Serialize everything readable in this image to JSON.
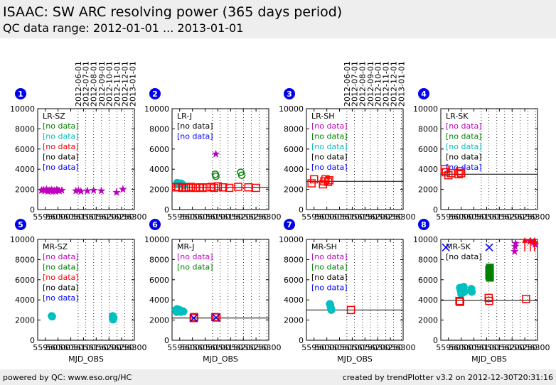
{
  "header": {
    "title": "ISAAC: SW ARC resolving power (365 days period)",
    "subtitle": "QC data range: 2012-01-01 ... 2013-01-01"
  },
  "footer": {
    "left": "powered by QC: www.eso.org/HC",
    "right": "created by trendPlotter v3.2 on 2012-12-30T20:31:16"
  },
  "axis": {
    "xlabel": "MJD_OBS",
    "xlim": [
      55920,
      56300
    ],
    "ylim": [
      0,
      10000
    ],
    "xticks": [
      55950,
      56000,
      56050,
      56100,
      56150,
      56200,
      56250,
      56300
    ],
    "yticks": [
      0,
      2000,
      4000,
      6000,
      8000,
      10000
    ],
    "month_lines": [
      56079,
      56109,
      56140,
      56171,
      56201,
      56232,
      56262,
      56293
    ],
    "date_labels": [
      "2012-06-01",
      "2012-07-01",
      "2012-08-01",
      "2012-09-01",
      "2012-10-01",
      "2012-11-01",
      "2012-12-01",
      "2013-01-01"
    ]
  },
  "colors": {
    "magenta": "#bf00bf",
    "green": "#008000",
    "cyan": "#00bfbf",
    "red": "#ff0000",
    "black": "#000000",
    "blue": "#0000ff"
  },
  "chart_data": [
    {
      "type": "scatter",
      "number": "1",
      "label": "LR-SZ",
      "dates": true,
      "no_data": [
        {
          "text": "[no data]",
          "color": "green"
        },
        {
          "text": "[no data]",
          "color": "cyan"
        },
        {
          "text": "[no data]",
          "color": "red"
        },
        {
          "text": "[no data]",
          "color": "black"
        },
        {
          "text": "[no data]",
          "color": "blue"
        }
      ],
      "series": [
        {
          "color": "magenta",
          "marker": "star",
          "points": [
            [
              55935,
              1900
            ],
            [
              55942,
              1950
            ],
            [
              55948,
              1850
            ],
            [
              55955,
              2000
            ],
            [
              55960,
              1800
            ],
            [
              55965,
              1900
            ],
            [
              55970,
              1850
            ],
            [
              55975,
              1950
            ],
            [
              55980,
              1800
            ],
            [
              55985,
              1900
            ],
            [
              55990,
              1800
            ],
            [
              55995,
              1950
            ],
            [
              56000,
              1900
            ],
            [
              56005,
              1850
            ],
            [
              56015,
              1900
            ],
            [
              56070,
              1850
            ],
            [
              56080,
              1900
            ],
            [
              56090,
              1800
            ],
            [
              56115,
              1850
            ],
            [
              56140,
              1900
            ],
            [
              56170,
              1850
            ],
            [
              56230,
              1700
            ],
            [
              56255,
              2000
            ]
          ]
        }
      ]
    },
    {
      "type": "scatter",
      "number": "2",
      "label": "LR-J",
      "dates": false,
      "no_data": [
        {
          "text": "[no data]",
          "color": "black"
        },
        {
          "text": "[no data]",
          "color": "blue"
        }
      ],
      "series": [
        {
          "color": "cyan",
          "marker": "dot",
          "points": [
            [
              55937,
              2500
            ],
            [
              55940,
              2650
            ],
            [
              55945,
              2600
            ],
            [
              55950,
              2550
            ],
            [
              55955,
              2600
            ],
            [
              55960,
              2500
            ],
            [
              55965,
              2400
            ]
          ]
        },
        {
          "color": "red",
          "marker": "square",
          "points": [
            [
              55935,
              2200
            ],
            [
              55945,
              2250
            ],
            [
              55960,
              2150
            ],
            [
              55975,
              2200
            ],
            [
              55985,
              2150
            ],
            [
              55995,
              2250
            ],
            [
              56015,
              2150
            ],
            [
              56030,
              2200
            ],
            [
              56040,
              2150
            ],
            [
              56055,
              2200
            ],
            [
              56075,
              2250
            ],
            [
              56085,
              2150
            ],
            [
              56100,
              2300
            ],
            [
              56120,
              2200
            ],
            [
              56145,
              2150
            ],
            [
              56180,
              2250
            ],
            [
              56220,
              2200
            ],
            [
              56250,
              2150
            ]
          ]
        },
        {
          "color": "green",
          "marker": "circle",
          "points": [
            [
              56090,
              3500
            ],
            [
              56092,
              3300
            ],
            [
              56190,
              3700
            ],
            [
              56194,
              3400
            ]
          ]
        },
        {
          "color": "magenta",
          "marker": "star",
          "points": [
            [
              56092,
              5500
            ]
          ]
        }
      ],
      "hlines": [
        2200
      ]
    },
    {
      "type": "scatter",
      "number": "3",
      "label": "LR-SH",
      "dates": true,
      "no_data": [
        {
          "text": "[no data]",
          "color": "magenta"
        },
        {
          "text": "[no data]",
          "color": "green"
        },
        {
          "text": "[no data]",
          "color": "cyan"
        },
        {
          "text": "[no data]",
          "color": "black"
        },
        {
          "text": "[no data]",
          "color": "blue"
        }
      ],
      "series": [
        {
          "color": "red",
          "marker": "square",
          "points": [
            [
              55940,
              2600
            ],
            [
              55950,
              3000
            ],
            [
              55985,
              2500
            ],
            [
              55990,
              2800
            ],
            [
              55995,
              3000
            ],
            [
              56005,
              2750
            ],
            [
              56010,
              2900
            ]
          ]
        }
      ],
      "hlines": [
        2800
      ]
    },
    {
      "type": "scatter",
      "number": "4",
      "label": "LR-SK",
      "dates": false,
      "no_data": [
        {
          "text": "[no data]",
          "color": "magenta"
        },
        {
          "text": "[no data]",
          "color": "green"
        },
        {
          "text": "[no data]",
          "color": "cyan"
        },
        {
          "text": "[no data]",
          "color": "black"
        },
        {
          "text": "[no data]",
          "color": "blue"
        }
      ],
      "series": [
        {
          "color": "red",
          "marker": "square",
          "points": [
            [
              55935,
              4000
            ],
            [
              55940,
              3700
            ],
            [
              55950,
              3400
            ],
            [
              55960,
              3600
            ],
            [
              55990,
              3500
            ],
            [
              55995,
              3800
            ],
            [
              56000,
              3600
            ]
          ]
        }
      ],
      "hlines": [
        3500
      ]
    },
    {
      "type": "scatter",
      "number": "5",
      "label": "MR-SZ",
      "dates": false,
      "no_data": [
        {
          "text": "[no data]",
          "color": "magenta"
        },
        {
          "text": "[no data]",
          "color": "green"
        },
        {
          "text": "[no data]",
          "color": "red"
        },
        {
          "text": "[no data]",
          "color": "black"
        },
        {
          "text": "[no data]",
          "color": "blue"
        }
      ],
      "series": [
        {
          "color": "cyan",
          "marker": "dot",
          "points": [
            [
              55975,
              2400
            ],
            [
              55977,
              2350
            ],
            [
              56215,
              2400
            ],
            [
              56217,
              2300
            ],
            [
              56215,
              2150
            ],
            [
              56218,
              2200
            ],
            [
              56216,
              2050
            ]
          ]
        }
      ]
    },
    {
      "type": "scatter",
      "number": "6",
      "label": "MR-J",
      "dates": false,
      "no_data": [
        {
          "text": "[no data]",
          "color": "magenta"
        },
        {
          "text": "[no data]",
          "color": "green"
        }
      ],
      "series": [
        {
          "color": "cyan",
          "marker": "dot",
          "points": [
            [
              55935,
              3000
            ],
            [
              55938,
              2800
            ],
            [
              55940,
              3100
            ],
            [
              55945,
              2900
            ],
            [
              55950,
              3000
            ],
            [
              55955,
              2800
            ],
            [
              55960,
              2900
            ],
            [
              55965,
              2850
            ]
          ]
        },
        {
          "color": "red",
          "marker": "square",
          "points": [
            [
              56005,
              2200
            ],
            [
              56007,
              2300
            ],
            [
              56090,
              2300
            ],
            [
              56095,
              2250
            ]
          ]
        },
        {
          "color": "blue",
          "marker": "x",
          "points": [
            [
              56005,
              2200
            ],
            [
              56093,
              2250
            ]
          ]
        }
      ],
      "hlines": [
        2200
      ]
    },
    {
      "type": "scatter",
      "number": "7",
      "label": "MR-SH",
      "dates": false,
      "no_data": [
        {
          "text": "[no data]",
          "color": "magenta"
        },
        {
          "text": "[no data]",
          "color": "green"
        },
        {
          "text": "[no data]",
          "color": "black"
        },
        {
          "text": "[no data]",
          "color": "blue"
        }
      ],
      "series": [
        {
          "color": "cyan",
          "marker": "dot",
          "points": [
            [
              56012,
              3600
            ],
            [
              56014,
              3500
            ],
            [
              56015,
              3300
            ],
            [
              56017,
              3100
            ],
            [
              56018,
              3000
            ]
          ]
        },
        {
          "color": "red",
          "marker": "square",
          "points": [
            [
              56095,
              3000
            ]
          ]
        }
      ],
      "hlines": [
        3000
      ]
    },
    {
      "type": "scatter",
      "number": "8",
      "label": "MR-SK",
      "dates": false,
      "no_data": [
        {
          "text": "[no data]",
          "color": "black"
        }
      ],
      "series": [
        {
          "color": "blue",
          "marker": "x",
          "points": [
            [
              55940,
              9200
            ],
            [
              56110,
              9200
            ]
          ]
        },
        {
          "color": "cyan",
          "marker": "dot",
          "points": [
            [
              55995,
              5200
            ],
            [
              55998,
              4900
            ],
            [
              56000,
              4600
            ],
            [
              56003,
              5000
            ],
            [
              56006,
              4700
            ],
            [
              56010,
              5300
            ],
            [
              56013,
              4800
            ],
            [
              56040,
              5100
            ],
            [
              56042,
              4800
            ]
          ]
        },
        {
          "color": "green",
          "marker": "sqfill",
          "points": [
            [
              56110,
              7000
            ],
            [
              56110,
              6800
            ],
            [
              56110,
              6600
            ],
            [
              56110,
              6400
            ],
            [
              56113,
              6800
            ],
            [
              56113,
              6500
            ],
            [
              56113,
              6200
            ],
            [
              56113,
              7200
            ]
          ]
        },
        {
          "color": "red",
          "marker": "square",
          "points": [
            [
              55993,
              3900
            ],
            [
              55996,
              3800
            ],
            [
              56108,
              4200
            ],
            [
              56110,
              3900
            ],
            [
              56255,
              4100
            ]
          ]
        },
        {
          "color": "magenta",
          "marker": "star",
          "points": [
            [
              56210,
              8800
            ],
            [
              56212,
              9300
            ],
            [
              56214,
              9600
            ],
            [
              56270,
              9800
            ],
            [
              56285,
              9700
            ],
            [
              56290,
              9500
            ]
          ]
        },
        {
          "color": "red",
          "marker": "arrow",
          "points": [
            [
              56250,
              9800
            ],
            [
              56272,
              9800
            ],
            [
              56288,
              9800
            ]
          ]
        }
      ],
      "hlines": [
        3950
      ]
    }
  ]
}
